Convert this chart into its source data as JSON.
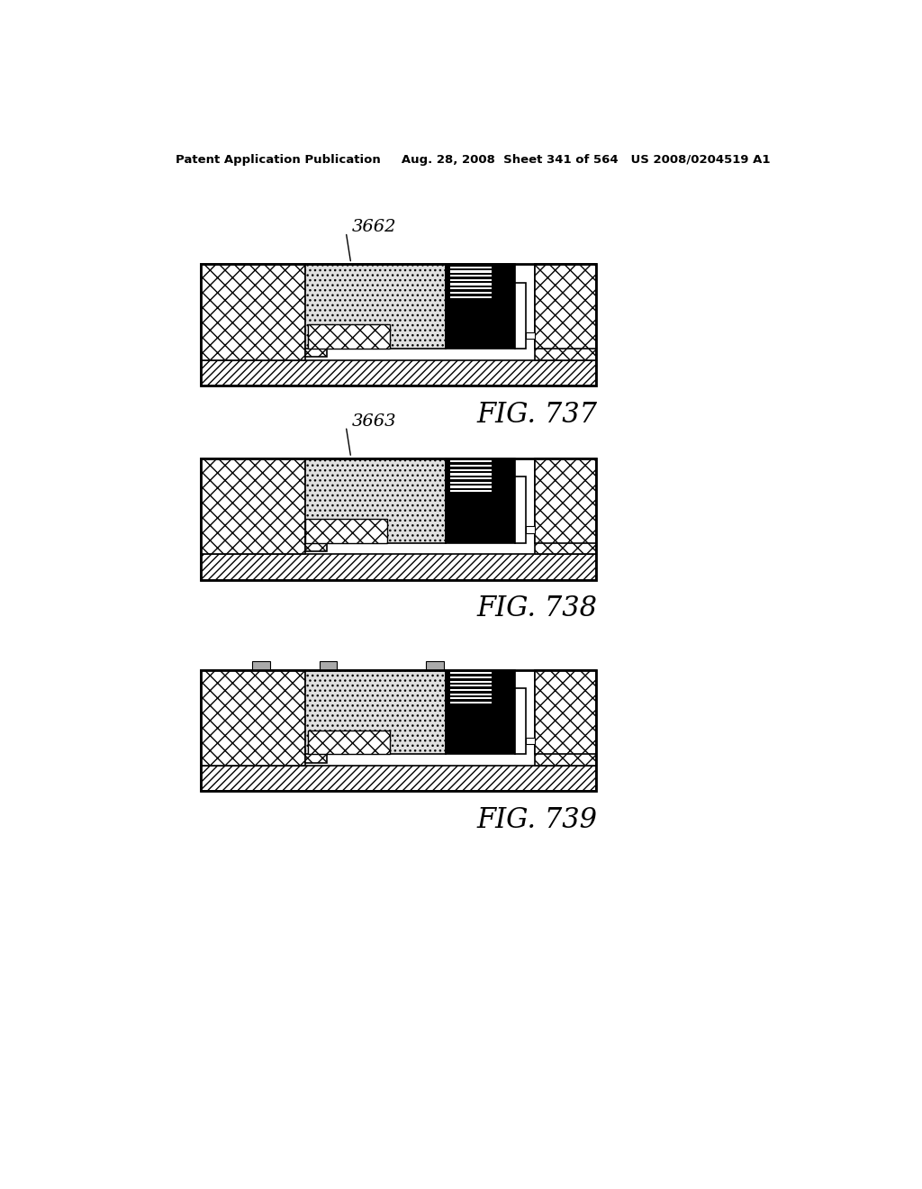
{
  "background_color": "#ffffff",
  "header_text": "Patent Application Publication     Aug. 28, 2008  Sheet 341 of 564   US 2008/0204519 A1",
  "panels": [
    {
      "label": "3662",
      "caption": "FIG. 737",
      "paddle_state": "right",
      "has_top_protrusions": false
    },
    {
      "label": "3663",
      "caption": "FIG. 738",
      "paddle_state": "left",
      "has_top_protrusions": false
    },
    {
      "label": null,
      "caption": "FIG. 739",
      "paddle_state": "right",
      "has_top_protrusions": true
    }
  ]
}
